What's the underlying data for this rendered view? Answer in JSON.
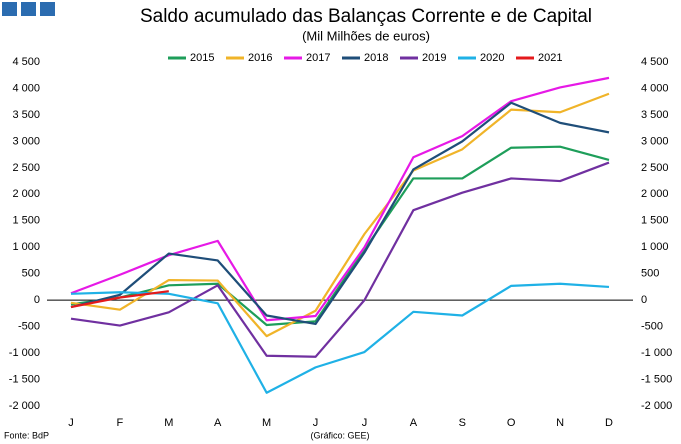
{
  "chart_data": {
    "type": "line",
    "title": "Saldo acumulado das Balanças Corrente e de Capital",
    "subtitle": "(Mil Milhões de euros)",
    "source": "Fonte: BdP",
    "note": "(Gráfico: GEE)",
    "categories": [
      "J",
      "F",
      "M",
      "A",
      "M",
      "J",
      "J",
      "A",
      "S",
      "O",
      "N",
      "D"
    ],
    "series": [
      {
        "name": "2015",
        "color": "#1e9e5a",
        "values": [
          -80,
          50,
          280,
          310,
          -470,
          -400,
          950,
          2300,
          2300,
          2880,
          2900,
          2650
        ]
      },
      {
        "name": "2016",
        "color": "#f0b429",
        "values": [
          -50,
          -180,
          380,
          370,
          -680,
          -200,
          1250,
          2450,
          2850,
          3600,
          3550,
          3900
        ]
      },
      {
        "name": "2017",
        "color": "#e619e6",
        "values": [
          130,
          480,
          850,
          1120,
          -380,
          -300,
          1000,
          2700,
          3100,
          3760,
          4020,
          4200
        ]
      },
      {
        "name": "2018",
        "color": "#1f4e79",
        "values": [
          -130,
          100,
          880,
          750,
          -290,
          -450,
          900,
          2470,
          3000,
          3730,
          3350,
          3170
        ]
      },
      {
        "name": "2019",
        "color": "#7030a0",
        "values": [
          -350,
          -480,
          -230,
          280,
          -1050,
          -1070,
          0,
          1700,
          2030,
          2300,
          2250,
          2600
        ]
      },
      {
        "name": "2020",
        "color": "#1fb1e6",
        "values": [
          120,
          150,
          120,
          -60,
          -1750,
          -1270,
          -980,
          -220,
          -290,
          270,
          310,
          250
        ]
      },
      {
        "name": "2021",
        "color": "#e41a1c",
        "values": [
          -130,
          50,
          170,
          null,
          null,
          null,
          null,
          null,
          null,
          null,
          null,
          null
        ]
      }
    ],
    "ylim": [
      -2000,
      4500
    ],
    "yticks": [
      {
        "value": -2000,
        "label": "-2 000"
      },
      {
        "value": -1500,
        "label": "-1 500"
      },
      {
        "value": -1000,
        "label": "-1 000"
      },
      -500,
      0,
      500,
      {
        "value": 1000,
        "label": "1 000"
      },
      {
        "value": 1500,
        "label": "1 500"
      },
      {
        "value": 2000,
        "label": "2 000"
      },
      {
        "value": 2500,
        "label": "2 500"
      },
      {
        "value": 3000,
        "label": "3 000"
      },
      {
        "value": 3500,
        "label": "3 500"
      },
      {
        "value": 4000,
        "label": "4 000"
      },
      {
        "value": 4500,
        "label": "4 500"
      }
    ]
  }
}
